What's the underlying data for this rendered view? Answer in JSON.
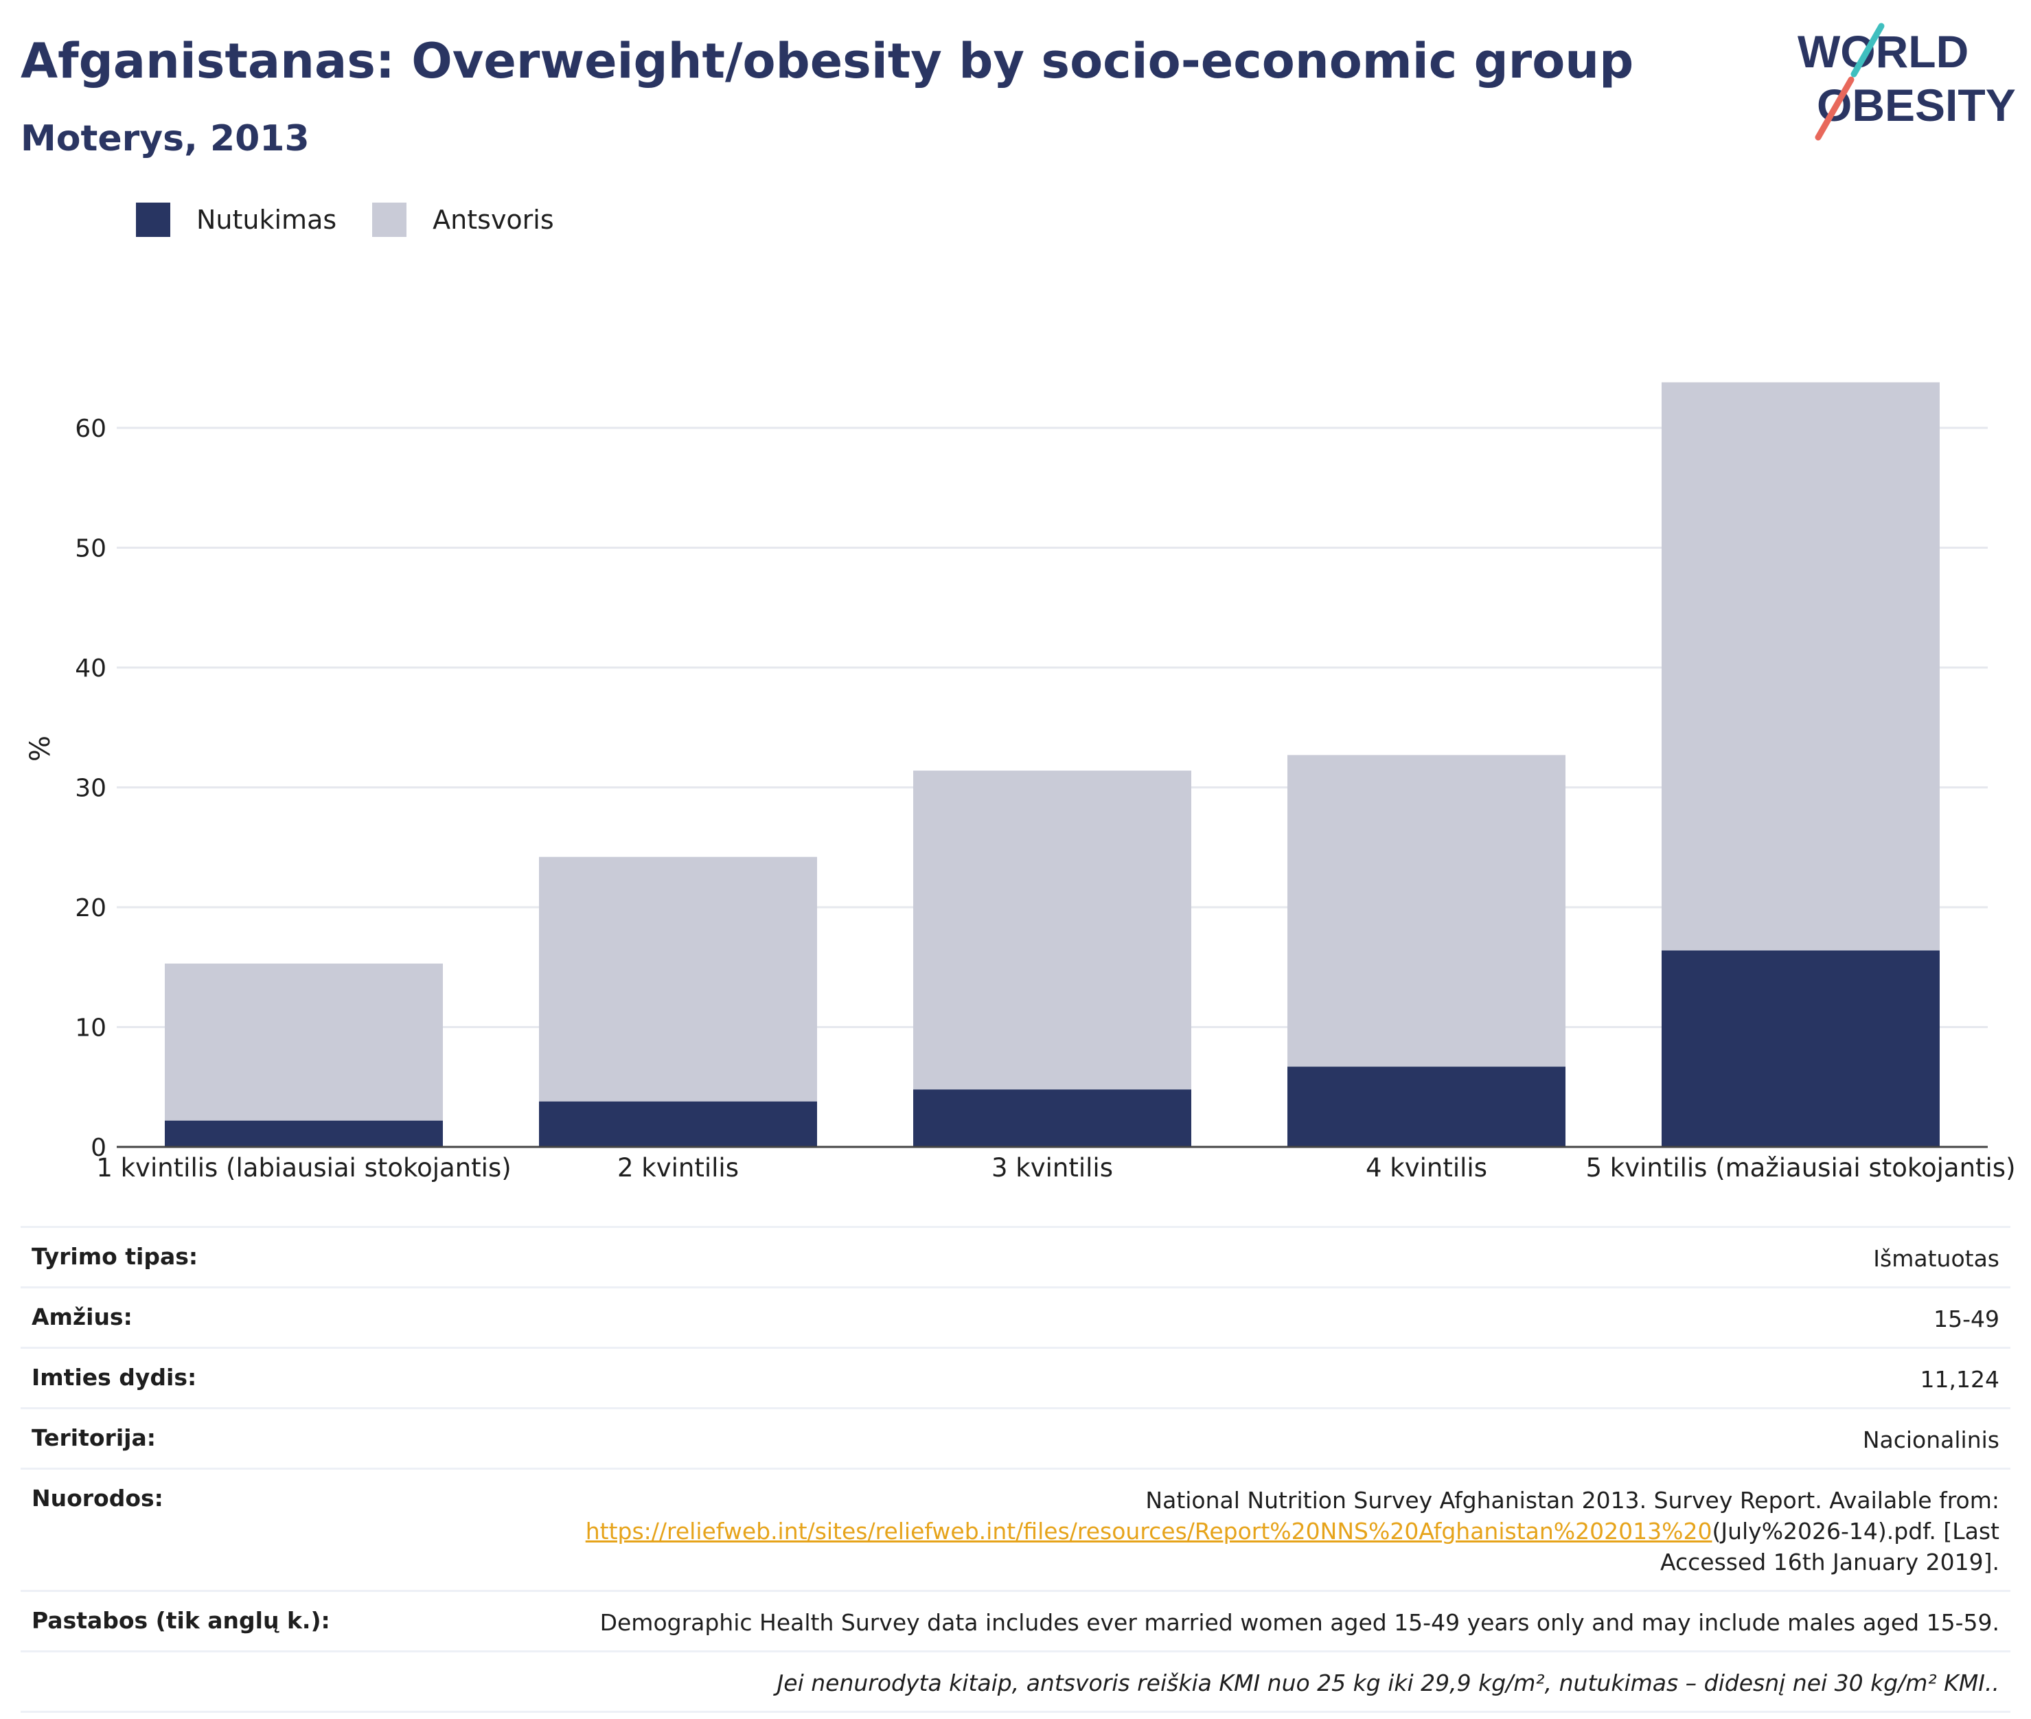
{
  "header": {
    "title": "Afganistanas: Overweight/obesity by socio-economic group",
    "subtitle": "Moterys, 2013"
  },
  "logo": {
    "line1": "WORLD",
    "line2": "OBESITY"
  },
  "colors": {
    "obesity": "#283562",
    "overweight": "#c9cbd7",
    "accent_teal": "#3fbfbf",
    "accent_red": "#e8685b",
    "link": "#e6a31a"
  },
  "chart_data": {
    "type": "bar",
    "stacked": true,
    "categories": [
      "1 kvintilis (labiausiai stokojantis)",
      "2 kvintilis",
      "3 kvintilis",
      "4 kvintilis",
      "5 kvintilis (mažiausiai stokojantis)"
    ],
    "series": [
      {
        "name": "Nutukimas",
        "values": [
          2.2,
          3.8,
          4.8,
          6.7,
          16.4
        ]
      },
      {
        "name": "Antsvoris",
        "values": [
          13.1,
          20.4,
          26.6,
          26.0,
          47.4
        ]
      }
    ],
    "ylabel": "%",
    "ylim": [
      0,
      65
    ],
    "yticks": [
      0,
      10,
      20,
      30,
      40,
      50,
      60
    ],
    "grid": true,
    "legend_position": "top-left"
  },
  "details": {
    "rows": [
      {
        "label": "Tyrimo tipas:",
        "value": "Išmatuotas"
      },
      {
        "label": "Amžius:",
        "value": "15-49"
      },
      {
        "label": "Imties dydis:",
        "value": "11,124"
      },
      {
        "label": "Teritorija:",
        "value": "Nacionalinis"
      }
    ],
    "references": {
      "label": "Nuorodos:",
      "text_before": "National Nutrition Survey Afghanistan 2013. Survey Report. Available from:",
      "link": "https://reliefweb.int/sites/reliefweb.int/files/resources/Report%20NNS%20Afghanistan%202013%20",
      "text_after": "(July%2026-14).pdf. [Last",
      "text_end": "Accessed 16th January 2019]."
    },
    "notes": {
      "label": "Pastabos (tik anglų k.):",
      "value": "Demographic Health Survey data includes ever married women aged 15-49 years only and may include males aged 15-59."
    },
    "footnote": "Jei nenurodyta kitaip, antsvoris reiškia KMI nuo 25 kg iki 29,9 kg/m², nutukimas – didesnį nei 30 kg/m² KMI.."
  }
}
